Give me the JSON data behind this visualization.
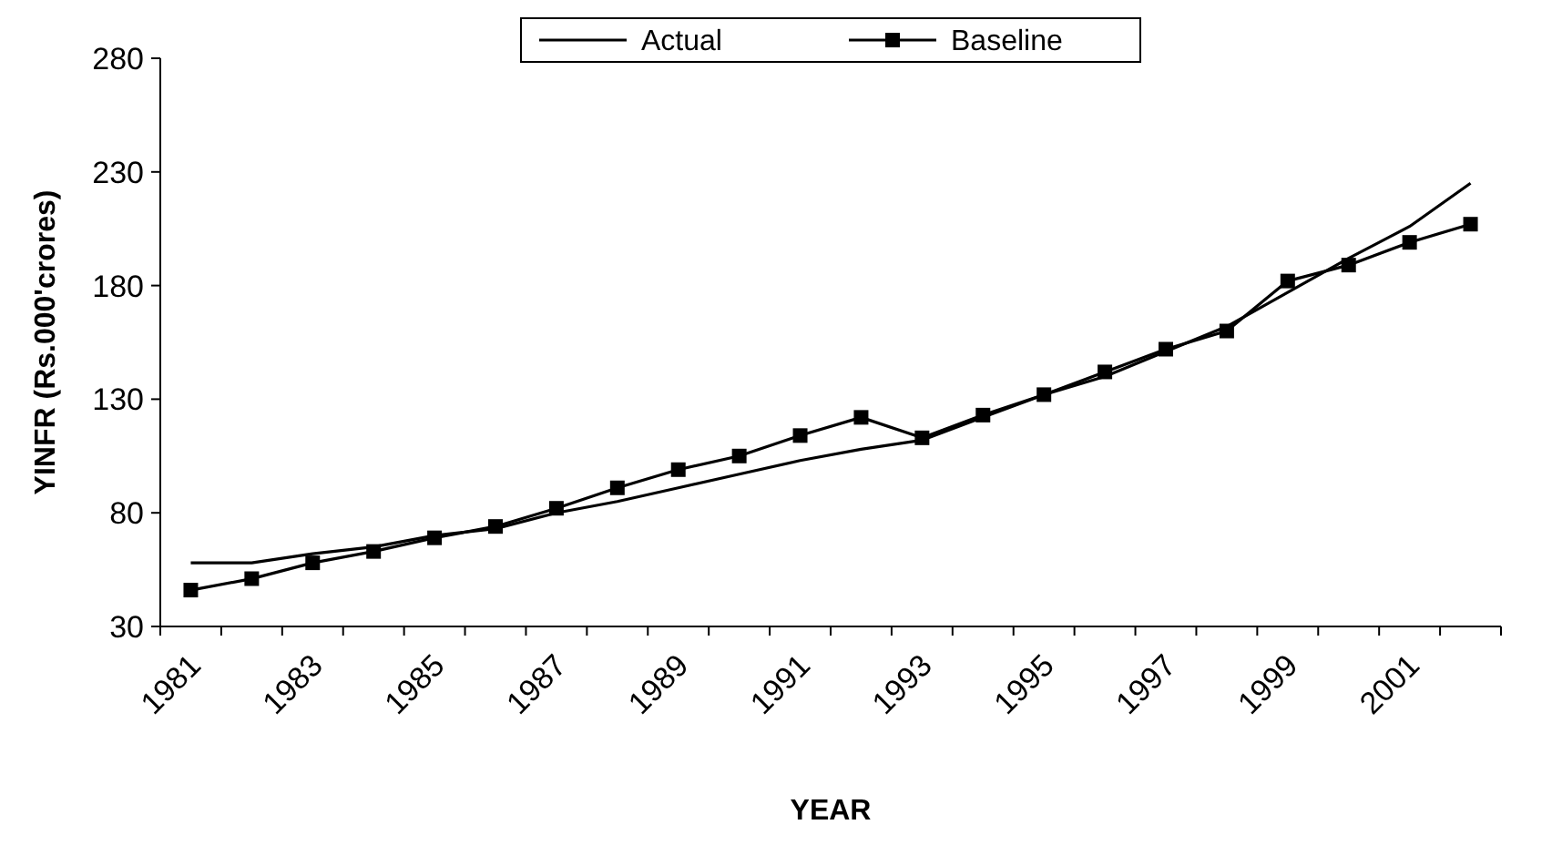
{
  "chart_data": {
    "type": "line",
    "xlabel": "YEAR",
    "ylabel": "YINFR (Rs.000'crores)",
    "categories": [
      "1981",
      null,
      "1983",
      null,
      "1985",
      null,
      "1987",
      null,
      "1989",
      null,
      "1991",
      null,
      "1993",
      null,
      "1995",
      null,
      "1997",
      null,
      "1999",
      null,
      "2001",
      null
    ],
    "series": [
      {
        "name": "Actual",
        "color": "#000000",
        "marker": "none",
        "values": [
          58,
          58,
          62,
          65,
          70,
          73,
          80,
          85,
          91,
          97,
          103,
          108,
          112,
          122,
          132,
          140,
          151,
          162,
          177,
          192,
          206,
          225
        ]
      },
      {
        "name": "Baseline",
        "color": "#000000",
        "marker": "square",
        "values": [
          46,
          51,
          58,
          63,
          69,
          74,
          82,
          91,
          99,
          105,
          114,
          122,
          113,
          123,
          132,
          142,
          152,
          160,
          182,
          189,
          199,
          207
        ]
      }
    ],
    "ylim": [
      30,
      280
    ],
    "yticks": [
      30,
      80,
      130,
      180,
      230,
      280
    ],
    "grid": false,
    "legend": "top",
    "line_style": "solid"
  }
}
